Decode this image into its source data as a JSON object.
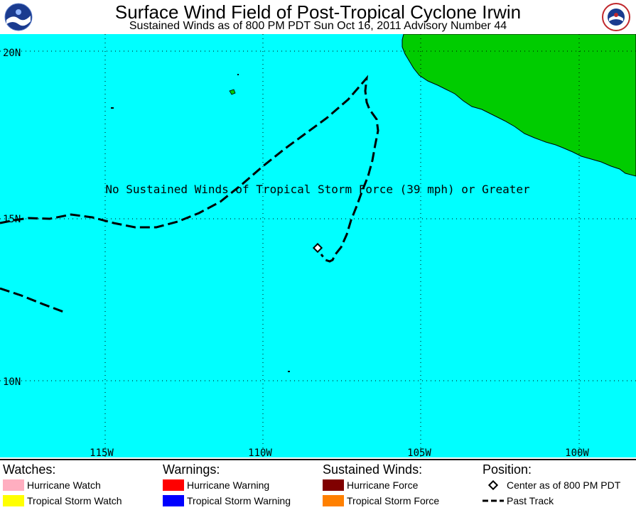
{
  "header": {
    "title": "Surface Wind Field of Post-Tropical Cyclone Irwin",
    "subtitle": "Sustained Winds as of 800 PM PDT Sun Oct 16, 2011     Advisory Number 44"
  },
  "map": {
    "message": "No Sustained Winds of Tropical Storm Force (39 mph) or Greater",
    "lat_labels": [
      "20N",
      "15N",
      "10N"
    ],
    "lon_labels": [
      "115W",
      "110W",
      "105W",
      "100W"
    ],
    "colors": {
      "ocean": "#00ffff",
      "land": "#00cc00",
      "track": "#000000"
    }
  },
  "legend": {
    "watches": {
      "heading": "Watches:",
      "items": [
        {
          "label": "Hurricane Watch",
          "color": "#ffaec0"
        },
        {
          "label": "Tropical Storm Watch",
          "color": "#ffff00"
        }
      ]
    },
    "warnings": {
      "heading": "Warnings:",
      "items": [
        {
          "label": "Hurricane Warning",
          "color": "#ff0000"
        },
        {
          "label": "Tropical Storm Warning",
          "color": "#0000ff"
        }
      ]
    },
    "winds": {
      "heading": "Sustained Winds:",
      "items": [
        {
          "label": "Hurricane Force",
          "color": "#800000"
        },
        {
          "label": "Tropical Storm Force",
          "color": "#ff8000"
        }
      ]
    },
    "position": {
      "heading": "Position:",
      "center_label": "Center as of 800 PM PDT",
      "track_label": "Past Track"
    }
  }
}
